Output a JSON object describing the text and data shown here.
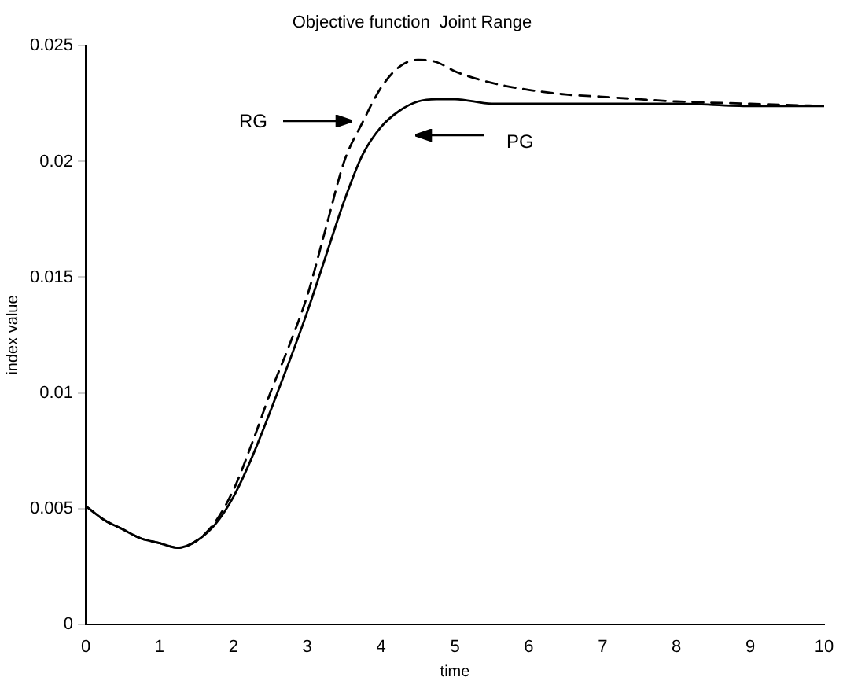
{
  "chart_data": {
    "type": "line",
    "title": "Objective function  Joint Range",
    "xlabel": "time",
    "ylabel": "index value",
    "xlim": [
      0,
      10
    ],
    "xticks": [
      0,
      1,
      2,
      3,
      4,
      5,
      6,
      7,
      8,
      9,
      10
    ],
    "ylim": [
      0,
      0.025
    ],
    "yticks": [
      0,
      0.005,
      0.01,
      0.015,
      0.02,
      0.025
    ],
    "grid": false,
    "legend": false,
    "marker": "none",
    "series": [
      {
        "color": "#000000",
        "line_style": "dashed",
        "x": [
          0,
          0.25,
          0.5,
          0.75,
          1,
          1.25,
          1.5,
          1.75,
          2,
          2.25,
          2.5,
          2.75,
          3,
          3.25,
          3.5,
          3.75,
          4,
          4.25,
          4.5,
          4.75,
          5,
          5.5,
          6,
          6.5,
          7,
          8,
          9,
          10
        ],
        "values": [
          0.0051,
          0.0045,
          0.0041,
          0.0037,
          0.0035,
          0.0033,
          0.0036,
          0.0044,
          0.0058,
          0.0078,
          0.01,
          0.012,
          0.0142,
          0.0171,
          0.02,
          0.0217,
          0.0232,
          0.0241,
          0.0244,
          0.0243,
          0.0239,
          0.0234,
          0.0231,
          0.0229,
          0.0228,
          0.0226,
          0.0225,
          0.0224
        ]
      },
      {
        "color": "#000000",
        "line_style": "solid",
        "x": [
          0,
          0.25,
          0.5,
          0.75,
          1,
          1.25,
          1.5,
          1.75,
          2,
          2.25,
          2.5,
          2.75,
          3,
          3.25,
          3.5,
          3.75,
          4,
          4.25,
          4.5,
          4.75,
          5,
          5.5,
          6,
          7,
          8,
          9,
          10
        ],
        "values": [
          0.0051,
          0.0045,
          0.0041,
          0.0037,
          0.0035,
          0.0033,
          0.0036,
          0.0043,
          0.0055,
          0.0072,
          0.0092,
          0.0113,
          0.0135,
          0.0159,
          0.0183,
          0.0203,
          0.0215,
          0.0222,
          0.0226,
          0.0227,
          0.0227,
          0.0225,
          0.0225,
          0.0225,
          0.0225,
          0.0224,
          0.0224
        ]
      }
    ],
    "annotations": [
      "RG",
      "PG"
    ]
  }
}
